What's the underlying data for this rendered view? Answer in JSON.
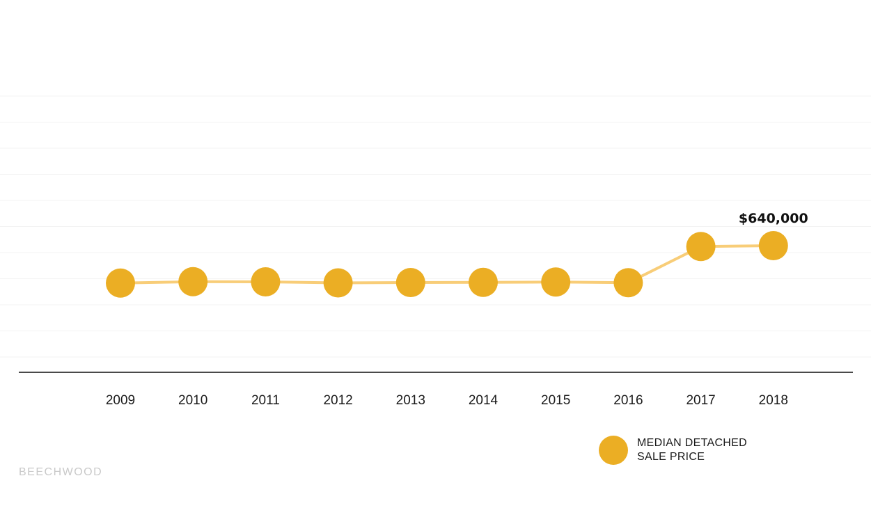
{
  "chart_data": {
    "type": "line",
    "categories": [
      "2009",
      "2010",
      "2011",
      "2012",
      "2013",
      "2014",
      "2015",
      "2016",
      "2017",
      "2018"
    ],
    "series": [
      {
        "name": "MEDIAN DETACHED SALE PRICE",
        "values": [
          425000,
          433000,
          432000,
          426000,
          428000,
          429000,
          431000,
          427000,
          635000,
          640000
        ]
      }
    ],
    "annotations": [
      {
        "category": "2018",
        "label": "$640,000"
      }
    ],
    "ylim": [
      0,
      1500000
    ],
    "gridlines": 10,
    "grid": true,
    "legend": "bottom-right",
    "colors": {
      "point": "#ebae24",
      "line": "#f8cd78",
      "axis": "#4a4a4a"
    }
  },
  "legend": {
    "line1": "MEDIAN DETACHED",
    "line2": "SALE PRICE"
  },
  "brand": "BEECHWOOD"
}
